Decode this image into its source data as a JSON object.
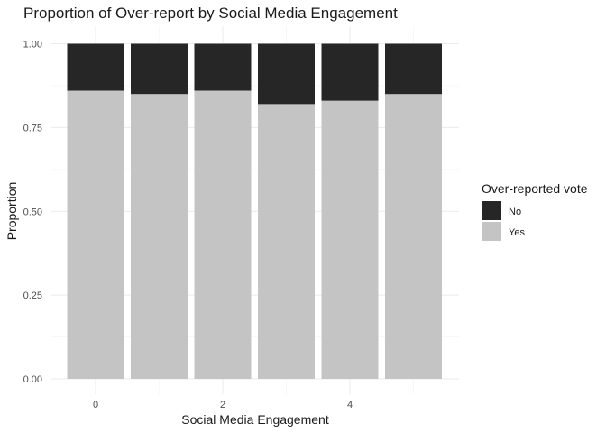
{
  "chart_data": {
    "type": "bar",
    "stacked": true,
    "title": "Proportion of Over-report by Social Media Engagement",
    "xlabel": "Social Media Engagement",
    "ylabel": "Proportion",
    "categories": [
      0,
      1,
      2,
      3,
      4,
      5
    ],
    "x_ticks": [
      "0",
      "2",
      "4"
    ],
    "y_ticks": [
      "0.00",
      "0.25",
      "0.50",
      "0.75",
      "1.00"
    ],
    "ylim": [
      0,
      1
    ],
    "xlim": [
      -0.5,
      5.5
    ],
    "grid": true,
    "legend": {
      "title": "Over-reported vote",
      "position": "right"
    },
    "series": [
      {
        "name": "Yes",
        "color": "#c4c4c4",
        "values": [
          0.86,
          0.85,
          0.86,
          0.82,
          0.83,
          0.85
        ]
      },
      {
        "name": "No",
        "color": "#262626",
        "values": [
          0.14,
          0.15,
          0.14,
          0.18,
          0.17,
          0.15
        ]
      }
    ]
  }
}
